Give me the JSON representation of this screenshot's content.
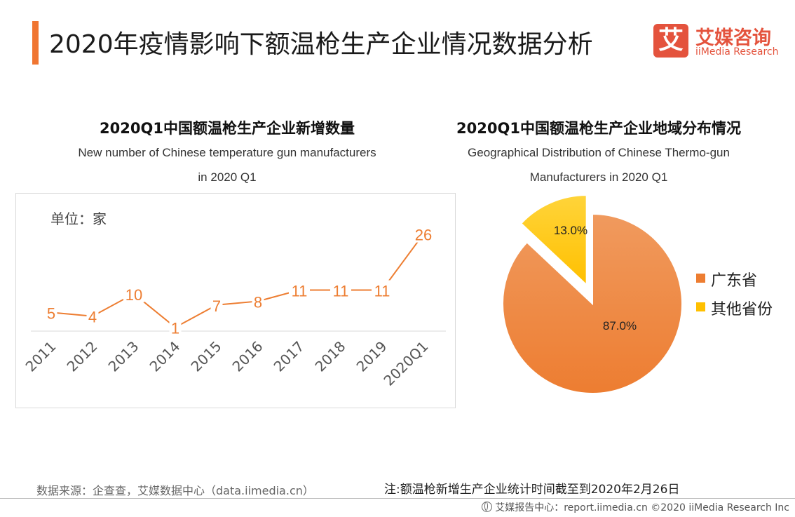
{
  "header": {
    "title": "2020年疫情影响下额温枪生产企业情况数据分析",
    "accent_color": "#f07531"
  },
  "logo": {
    "glyph": "艾",
    "cn": "艾媒咨询",
    "en": "iiMedia Research",
    "color": "#e4533d"
  },
  "chart_data": [
    {
      "type": "line",
      "title": "2020Q1中国额温枪生产企业新增数量",
      "subtitle_line1": "New number of Chinese temperature gun manufacturers",
      "subtitle_line2": "in 2020 Q1",
      "unit_label": "单位：家",
      "categories": [
        "2011",
        "2012",
        "2013",
        "2014",
        "2015",
        "2016",
        "2017",
        "2018",
        "2019",
        "2020Q1"
      ],
      "values": [
        5,
        4,
        10,
        1,
        7,
        8,
        11,
        11,
        11,
        26
      ],
      "ylim": [
        0,
        28
      ],
      "grid": false,
      "line_color": "#ed7d31"
    },
    {
      "type": "pie",
      "title": "2020Q1中国额温枪生产企业地域分布情况",
      "subtitle_line1": "Geographical Distribution of Chinese Thermo-gun",
      "subtitle_line2": "Manufacturers in 2020 Q1",
      "slices": [
        {
          "label": "广东省",
          "value": 87.0,
          "display": "87.0%",
          "color": "#ed7d31",
          "color_light": "#f09a5e"
        },
        {
          "label": "其他省份",
          "value": 13.0,
          "display": "13.0%",
          "color": "#ffc000",
          "color_light": "#ffd43a"
        }
      ],
      "legend_position": "right"
    }
  ],
  "footer": {
    "source": "数据来源：企查查，艾媒数据中心（data.iimedia.cn）",
    "note": "注:额温枪新增生产企业统计时间截至到2020年2月26日",
    "copyright": "艾媒报告中心：report.iimedia.cn ©2020 iiMedia Research Inc"
  }
}
